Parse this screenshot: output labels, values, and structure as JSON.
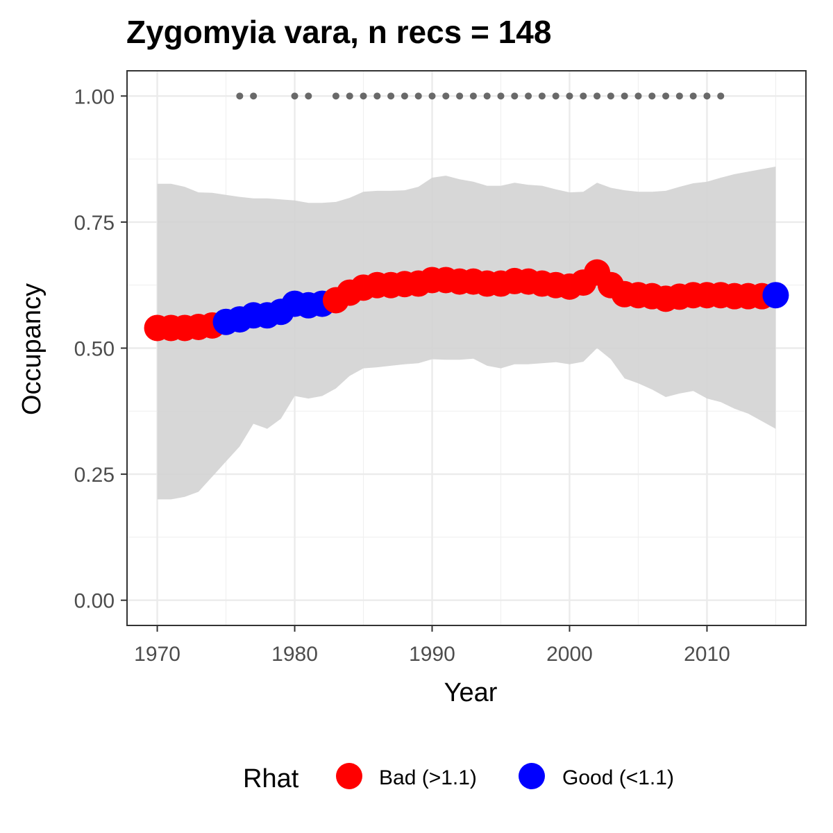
{
  "chart_data": {
    "type": "scatter",
    "title": "Zygomyia vara, n recs = 148",
    "xlabel": "Year",
    "ylabel": "Occupancy",
    "xlim": [
      1967.8,
      2017.2
    ],
    "ylim": [
      -0.05,
      1.05
    ],
    "x_ticks": [
      1970,
      1980,
      1990,
      2000,
      2010
    ],
    "y_ticks": [
      0.0,
      0.25,
      0.5,
      0.75,
      1.0
    ],
    "x_tick_labels": [
      "1970",
      "1980",
      "1990",
      "2000",
      "2010"
    ],
    "y_tick_labels": [
      "0.00",
      "0.25",
      "0.50",
      "0.75",
      "1.00"
    ],
    "grid": true,
    "legend": {
      "title": "Rhat",
      "position": "bottom",
      "entries": [
        {
          "label": "Bad (>1.1)",
          "color": "#ff0000"
        },
        {
          "label": "Good (<1.1)",
          "color": "#0000ff"
        }
      ]
    },
    "colors": {
      "bad": "#ff0000",
      "good": "#0000ff",
      "ribbon": "#d3d3d3",
      "records": "#696969"
    },
    "ribbon": {
      "x": [
        1970,
        1971,
        1972,
        1973,
        1974,
        1975,
        1976,
        1977,
        1978,
        1979,
        1980,
        1981,
        1982,
        1983,
        1984,
        1985,
        1986,
        1987,
        1988,
        1989,
        1990,
        1991,
        1992,
        1993,
        1994,
        1995,
        1996,
        1997,
        1998,
        1999,
        2000,
        2001,
        2002,
        2003,
        2004,
        2005,
        2006,
        2007,
        2008,
        2009,
        2010,
        2011,
        2012,
        2013,
        2014,
        2015
      ],
      "lower": [
        0.2,
        0.2,
        0.205,
        0.215,
        0.245,
        0.275,
        0.305,
        0.35,
        0.34,
        0.36,
        0.405,
        0.4,
        0.405,
        0.42,
        0.445,
        0.46,
        0.462,
        0.465,
        0.468,
        0.47,
        0.478,
        0.477,
        0.477,
        0.479,
        0.465,
        0.46,
        0.468,
        0.468,
        0.47,
        0.472,
        0.468,
        0.473,
        0.5,
        0.478,
        0.44,
        0.43,
        0.418,
        0.403,
        0.41,
        0.415,
        0.4,
        0.393,
        0.38,
        0.37,
        0.355,
        0.34
      ],
      "upper": [
        0.826,
        0.826,
        0.82,
        0.809,
        0.808,
        0.804,
        0.8,
        0.797,
        0.797,
        0.795,
        0.793,
        0.788,
        0.788,
        0.79,
        0.798,
        0.81,
        0.812,
        0.812,
        0.813,
        0.82,
        0.838,
        0.842,
        0.835,
        0.83,
        0.822,
        0.822,
        0.828,
        0.824,
        0.822,
        0.815,
        0.809,
        0.81,
        0.828,
        0.818,
        0.813,
        0.81,
        0.81,
        0.812,
        0.82,
        0.827,
        0.83,
        0.838,
        0.845,
        0.85,
        0.855,
        0.86
      ]
    },
    "series": [
      {
        "name": "Bad (>1.1)",
        "color": "#ff0000",
        "x": [
          1970,
          1971,
          1972,
          1973,
          1974,
          1983,
          1984,
          1985,
          1986,
          1987,
          1988,
          1989,
          1990,
          1991,
          1992,
          1993,
          1994,
          1995,
          1996,
          1997,
          1998,
          1999,
          2000,
          2001,
          2002,
          2003,
          2004,
          2005,
          2006,
          2007,
          2008,
          2009,
          2010,
          2011,
          2012,
          2013,
          2014
        ],
        "y": [
          0.54,
          0.54,
          0.54,
          0.542,
          0.545,
          0.595,
          0.61,
          0.62,
          0.625,
          0.625,
          0.627,
          0.628,
          0.635,
          0.635,
          0.632,
          0.632,
          0.628,
          0.628,
          0.633,
          0.632,
          0.628,
          0.625,
          0.622,
          0.63,
          0.65,
          0.625,
          0.607,
          0.605,
          0.603,
          0.598,
          0.602,
          0.605,
          0.605,
          0.605,
          0.603,
          0.603,
          0.603
        ]
      },
      {
        "name": "Good (<1.1)",
        "color": "#0000ff",
        "x": [
          1975,
          1976,
          1977,
          1978,
          1979,
          1980,
          1981,
          1982,
          2015
        ],
        "y": [
          0.552,
          0.557,
          0.565,
          0.565,
          0.572,
          0.588,
          0.585,
          0.588,
          0.605
        ]
      }
    ],
    "record_years": [
      1976,
      1977,
      1980,
      1981,
      1983,
      1984,
      1985,
      1986,
      1987,
      1988,
      1989,
      1990,
      1991,
      1992,
      1993,
      1994,
      1995,
      1996,
      1997,
      1998,
      1999,
      2000,
      2001,
      2002,
      2003,
      2004,
      2005,
      2006,
      2007,
      2008,
      2009,
      2010,
      2011
    ],
    "record_y": 1.0
  }
}
